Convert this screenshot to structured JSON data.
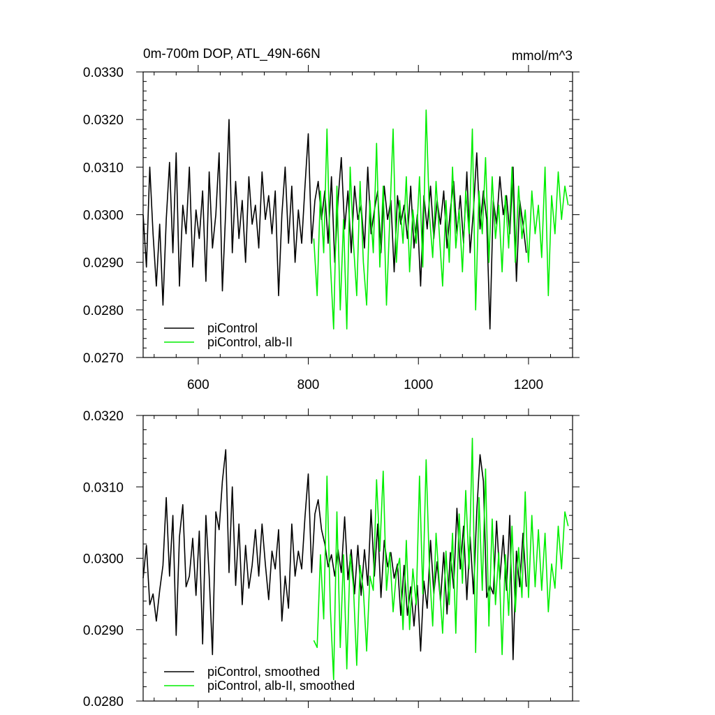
{
  "chart_data": [
    {
      "type": "line",
      "title": "0m-700m DOP, ATL_49N-66N",
      "units": "mmol/m^3",
      "xlim": [
        500,
        1280
      ],
      "ylim": [
        0.027,
        0.033
      ],
      "xticks": [
        600,
        800,
        1000,
        1200
      ],
      "xtick_labels": [
        "600",
        "800",
        "1000",
        "1200"
      ],
      "yticks": [
        0.027,
        0.028,
        0.029,
        0.03,
        0.031,
        0.032,
        0.033
      ],
      "ytick_labels": [
        "0.0270",
        "0.0280",
        "0.0290",
        "0.0300",
        "0.0310",
        "0.0320",
        "0.0330"
      ],
      "grid": false,
      "legend_position": "bottom-left",
      "series": [
        {
          "name": "piControl",
          "color": "#000000",
          "x": [
            500,
            506,
            512,
            518,
            524,
            530,
            536,
            542,
            548,
            554,
            560,
            566,
            572,
            578,
            584,
            590,
            596,
            602,
            608,
            614,
            620,
            626,
            632,
            638,
            644,
            650,
            656,
            662,
            668,
            674,
            680,
            686,
            692,
            698,
            704,
            710,
            716,
            722,
            728,
            734,
            740,
            746,
            752,
            758,
            764,
            770,
            776,
            782,
            788,
            794,
            800,
            806,
            812,
            818,
            824,
            830,
            836,
            842,
            848,
            854,
            860,
            866,
            872,
            878,
            884,
            890,
            896,
            902,
            908,
            914,
            920,
            926,
            932,
            938,
            944,
            950,
            956,
            962,
            968,
            974,
            980,
            986,
            992,
            998,
            1004,
            1010,
            1016,
            1022,
            1028,
            1034,
            1040,
            1046,
            1052,
            1058,
            1064,
            1070,
            1076,
            1082,
            1088,
            1094,
            1100,
            1106,
            1112,
            1118,
            1124,
            1130,
            1136,
            1142,
            1148,
            1154,
            1160,
            1166,
            1172,
            1178,
            1184,
            1190,
            1196
          ],
          "y": [
            0.03,
            0.0289,
            0.031,
            0.0296,
            0.0285,
            0.0298,
            0.0281,
            0.0299,
            0.0311,
            0.0292,
            0.0313,
            0.0285,
            0.0302,
            0.0296,
            0.031,
            0.0289,
            0.0301,
            0.0295,
            0.0305,
            0.0286,
            0.0309,
            0.0293,
            0.03,
            0.0313,
            0.0284,
            0.0301,
            0.032,
            0.0292,
            0.0307,
            0.0295,
            0.0303,
            0.029,
            0.0308,
            0.0298,
            0.0302,
            0.0293,
            0.0309,
            0.0299,
            0.0304,
            0.0296,
            0.0305,
            0.0283,
            0.03,
            0.031,
            0.0294,
            0.0306,
            0.029,
            0.0301,
            0.0294,
            0.0306,
            0.0317,
            0.0294,
            0.0303,
            0.0307,
            0.0299,
            0.0305,
            0.0294,
            0.0308,
            0.029,
            0.0303,
            0.0312,
            0.0297,
            0.0305,
            0.0292,
            0.0306,
            0.0299,
            0.0302,
            0.0293,
            0.031,
            0.0296,
            0.0301,
            0.0305,
            0.0292,
            0.0306,
            0.0299,
            0.0303,
            0.0288,
            0.0304,
            0.0298,
            0.0302,
            0.0295,
            0.0306,
            0.0293,
            0.03,
            0.0285,
            0.0304,
            0.0297,
            0.0306,
            0.0295,
            0.0303,
            0.0298,
            0.0305,
            0.0293,
            0.0301,
            0.0307,
            0.0296,
            0.0304,
            0.0294,
            0.0309,
            0.0292,
            0.0301,
            0.0313,
            0.0297,
            0.0305,
            0.0299,
            0.0276,
            0.0303,
            0.0298,
            0.0308,
            0.03,
            0.0304,
            0.0296,
            0.031,
            0.0286,
            0.0303,
            0.0298,
            0.0292
          ]
        },
        {
          "name": "piControl, alb-II",
          "color": "#00ee00",
          "x": [
            810,
            816,
            822,
            828,
            834,
            840,
            846,
            852,
            858,
            864,
            870,
            876,
            882,
            888,
            894,
            900,
            906,
            912,
            918,
            924,
            930,
            936,
            942,
            948,
            954,
            960,
            966,
            972,
            978,
            984,
            990,
            996,
            1002,
            1008,
            1014,
            1020,
            1026,
            1032,
            1038,
            1044,
            1050,
            1056,
            1062,
            1068,
            1074,
            1080,
            1086,
            1092,
            1098,
            1104,
            1110,
            1116,
            1122,
            1128,
            1134,
            1140,
            1146,
            1152,
            1158,
            1164,
            1170,
            1176,
            1182,
            1188,
            1194,
            1200,
            1206,
            1212,
            1218,
            1224,
            1230,
            1236,
            1242,
            1248,
            1254,
            1260,
            1266,
            1272
          ],
          "y": [
            0.0295,
            0.0283,
            0.0305,
            0.0292,
            0.0318,
            0.029,
            0.0276,
            0.0306,
            0.028,
            0.0299,
            0.0276,
            0.031,
            0.0294,
            0.0283,
            0.0307,
            0.029,
            0.0281,
            0.0303,
            0.0292,
            0.0315,
            0.0289,
            0.0306,
            0.0281,
            0.0299,
            0.0318,
            0.029,
            0.0303,
            0.0294,
            0.0308,
            0.0288,
            0.0301,
            0.0294,
            0.0308,
            0.0289,
            0.0322,
            0.03,
            0.0291,
            0.0307,
            0.0296,
            0.0285,
            0.0303,
            0.029,
            0.031,
            0.0293,
            0.0301,
            0.0288,
            0.0305,
            0.0296,
            0.0318,
            0.028,
            0.0305,
            0.0296,
            0.0312,
            0.029,
            0.0308,
            0.0295,
            0.0302,
            0.0288,
            0.0304,
            0.0293,
            0.031,
            0.029,
            0.0306,
            0.0295,
            0.0301,
            0.029,
            0.0305,
            0.0296,
            0.0302,
            0.0291,
            0.031,
            0.0283,
            0.0304,
            0.0296,
            0.0309,
            0.0299,
            0.0306,
            0.0302
          ]
        }
      ]
    },
    {
      "type": "line",
      "xlim": [
        500,
        1280
      ],
      "ylim": [
        0.028,
        0.032
      ],
      "xticks": [
        600,
        800,
        1000,
        1200
      ],
      "yticks": [
        0.028,
        0.029,
        0.03,
        0.031,
        0.032
      ],
      "ytick_labels": [
        "0.0280",
        "0.0290",
        "0.0300",
        "0.0310",
        "0.0320"
      ],
      "grid": false,
      "legend_position": "bottom-left",
      "series": [
        {
          "name": "piControl, smoothed",
          "color": "#000000",
          "x": [
            500,
            506,
            512,
            518,
            524,
            530,
            536,
            542,
            548,
            554,
            560,
            566,
            572,
            578,
            584,
            590,
            596,
            602,
            608,
            614,
            620,
            626,
            632,
            638,
            644,
            650,
            656,
            662,
            668,
            674,
            680,
            686,
            692,
            698,
            704,
            710,
            716,
            722,
            728,
            734,
            740,
            746,
            752,
            758,
            764,
            770,
            776,
            782,
            788,
            794,
            800,
            806,
            812,
            818,
            824,
            830,
            836,
            842,
            848,
            854,
            860,
            866,
            872,
            878,
            884,
            890,
            896,
            902,
            908,
            914,
            920,
            926,
            932,
            938,
            944,
            950,
            956,
            962,
            968,
            974,
            980,
            986,
            992,
            998,
            1004,
            1010,
            1016,
            1022,
            1028,
            1034,
            1040,
            1046,
            1052,
            1058,
            1064,
            1070,
            1076,
            1082,
            1088,
            1094,
            1100,
            1106,
            1112,
            1118,
            1124,
            1130,
            1136,
            1142,
            1148,
            1154,
            1160,
            1166,
            1172,
            1178,
            1184,
            1190,
            1196
          ],
          "y": [
            0.02972,
            0.03018,
            0.02935,
            0.0295,
            0.02912,
            0.02955,
            0.0299,
            0.03085,
            0.02975,
            0.0306,
            0.02892,
            0.0303,
            0.03075,
            0.0296,
            0.02975,
            0.03028,
            0.02948,
            0.03038,
            0.0288,
            0.0306,
            0.02975,
            0.02865,
            0.03065,
            0.0304,
            0.03108,
            0.03152,
            0.0298,
            0.031,
            0.02962,
            0.03048,
            0.02935,
            0.03018,
            0.02958,
            0.0299,
            0.0304,
            0.02975,
            0.03048,
            0.02992,
            0.02942,
            0.0301,
            0.02985,
            0.0304,
            0.02912,
            0.02975,
            0.0293,
            0.03048,
            0.02975,
            0.0301,
            0.02985,
            0.03058,
            0.03118,
            0.0298,
            0.03062,
            0.03082,
            0.0304,
            0.0302,
            0.02988,
            0.03005,
            0.02975,
            0.03012,
            0.0298,
            0.03058,
            0.0297,
            0.03012,
            0.0295,
            0.03018,
            0.02948,
            0.03012,
            0.02962,
            0.03068,
            0.02975,
            0.03048,
            0.02945,
            0.03025,
            0.02988,
            0.03008,
            0.02972,
            0.02992,
            0.0292,
            0.0299,
            0.0292,
            0.0296,
            0.02905,
            0.02962,
            0.0287,
            0.02968,
            0.0293,
            0.03025,
            0.0295,
            0.02995,
            0.0294,
            0.03008,
            0.02922,
            0.03008,
            0.02958,
            0.0307,
            0.02985,
            0.03045,
            0.02942,
            0.0303,
            0.0295,
            0.03065,
            0.03145,
            0.03108,
            0.02945,
            0.02962,
            0.0295,
            0.03052,
            0.0297,
            0.03032,
            0.02955,
            0.0306,
            0.02858,
            0.0301,
            0.0296,
            0.03035,
            0.0296
          ]
        },
        {
          "name": "piControl, alb-II, smoothed",
          "color": "#00ee00",
          "x": [
            810,
            816,
            822,
            828,
            834,
            840,
            846,
            852,
            858,
            864,
            870,
            876,
            882,
            888,
            894,
            900,
            906,
            912,
            918,
            924,
            930,
            936,
            942,
            948,
            954,
            960,
            966,
            972,
            978,
            984,
            990,
            996,
            1002,
            1008,
            1014,
            1020,
            1026,
            1032,
            1038,
            1044,
            1050,
            1056,
            1062,
            1068,
            1074,
            1080,
            1086,
            1092,
            1098,
            1104,
            1110,
            1116,
            1122,
            1128,
            1134,
            1140,
            1146,
            1152,
            1158,
            1164,
            1170,
            1176,
            1182,
            1188,
            1194,
            1200,
            1206,
            1212,
            1218,
            1224,
            1230,
            1236,
            1242,
            1248,
            1254,
            1260,
            1266,
            1272
          ],
          "y": [
            0.02885,
            0.02875,
            0.03005,
            0.02915,
            0.03115,
            0.0293,
            0.0283,
            0.03065,
            0.02875,
            0.03005,
            0.02845,
            0.03005,
            0.0296,
            0.0285,
            0.0299,
            0.02955,
            0.0287,
            0.02975,
            0.02955,
            0.0311,
            0.0301,
            0.03122,
            0.02955,
            0.03008,
            0.02925,
            0.0298,
            0.03,
            0.029,
            0.03025,
            0.029,
            0.02985,
            0.02935,
            0.03115,
            0.0295,
            0.03138,
            0.02985,
            0.02905,
            0.03035,
            0.02965,
            0.02895,
            0.0301,
            0.02935,
            0.03035,
            0.02895,
            0.03062,
            0.02965,
            0.03095,
            0.02985,
            0.03168,
            0.02868,
            0.03085,
            0.02955,
            0.03125,
            0.02905,
            0.03055,
            0.02935,
            0.03008,
            0.02865,
            0.03005,
            0.0292,
            0.03045,
            0.02925,
            0.03015,
            0.02945,
            0.03093,
            0.02945,
            0.0306,
            0.0296,
            0.0304,
            0.02955,
            0.03035,
            0.02925,
            0.02992,
            0.02958,
            0.03045,
            0.02985,
            0.03065,
            0.03045
          ]
        }
      ]
    }
  ]
}
